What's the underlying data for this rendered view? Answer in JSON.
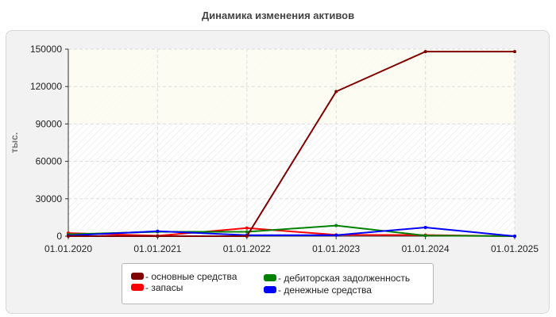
{
  "chart_data": {
    "type": "line",
    "title": "Динамика изменения активов",
    "xlabel": "",
    "ylabel": "тыс.",
    "categories": [
      "01.01.2020",
      "01.01.2021",
      "01.01.2022",
      "01.01.2023",
      "01.01.2024",
      "01.01.2025"
    ],
    "ylim": [
      0,
      150000
    ],
    "yticks": [
      "0",
      "30000",
      "60000",
      "90000",
      "120000",
      "150000"
    ],
    "grid": true,
    "legend_position": "bottom",
    "series": [
      {
        "name": "основные средства",
        "color": "#800000",
        "values": [
          0,
          0,
          0,
          116000,
          148000,
          148000
        ]
      },
      {
        "name": "запасы",
        "color": "#ff0000",
        "values": [
          2500,
          300,
          6500,
          1000,
          900,
          0
        ]
      },
      {
        "name": "дебиторская задолженность",
        "color": "#008000",
        "values": [
          1500,
          3500,
          3500,
          8500,
          500,
          0
        ]
      },
      {
        "name": "денежные средства",
        "color": "#0000ff",
        "values": [
          500,
          4000,
          800,
          800,
          7000,
          0
        ]
      }
    ]
  }
}
